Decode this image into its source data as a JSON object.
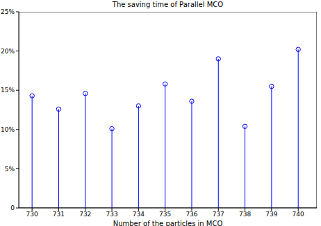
{
  "chart_data": {
    "type": "stem",
    "title": "The saving time of Parallel MCO",
    "x_label": "Number of the particles in MCO",
    "x": [
      730,
      731,
      732,
      733,
      734,
      735,
      736,
      737,
      738,
      739,
      740
    ],
    "values": [
      14.3,
      12.6,
      14.6,
      10.1,
      13.0,
      15.8,
      13.6,
      19.0,
      10.4,
      15.5,
      20.2
    ],
    "color": "#0000ff",
    "marker": "circle",
    "xlim": [
      729.5,
      740.7
    ],
    "xticks": [
      730,
      731,
      732,
      733,
      734,
      735,
      736,
      737,
      738,
      739,
      740
    ],
    "ylim": [
      0,
      25
    ],
    "yticks": [
      0,
      {
        "value": 5,
        "label": "5%"
      },
      {
        "value": 10,
        "label": "10%"
      },
      {
        "value": 15,
        "label": "15%"
      },
      {
        "value": 20,
        "label": "20%"
      },
      {
        "value": 25,
        "label": "25%"
      }
    ],
    "grid": false
  }
}
